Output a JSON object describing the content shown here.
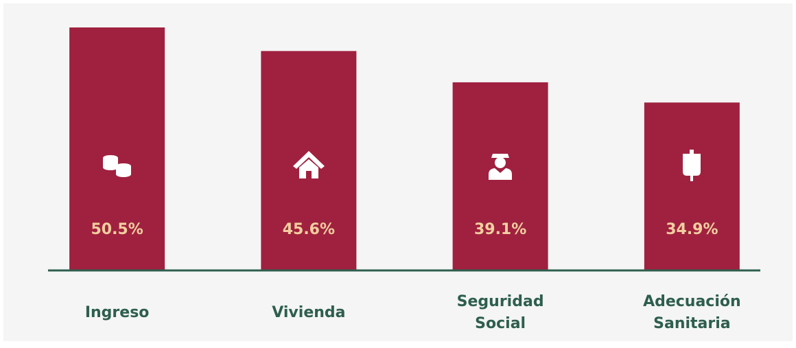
{
  "chart_data": {
    "type": "bar",
    "categories": [
      "Ingreso",
      "Vivienda",
      "Seguridad Social",
      "Adecuación Sanitaria"
    ],
    "values": [
      50.5,
      45.6,
      39.1,
      34.9
    ],
    "value_labels": [
      "50.5%",
      "45.6%",
      "39.1%",
      "34.9%"
    ],
    "color": "#a0213f"
  }
}
